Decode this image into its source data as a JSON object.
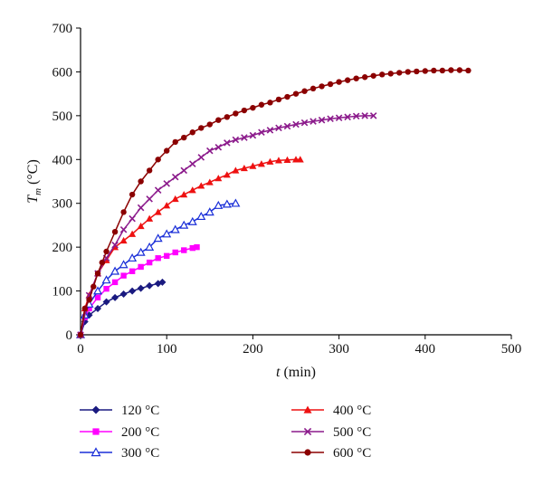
{
  "chart_data": {
    "type": "line",
    "title": "",
    "xlabel_var": "t",
    "xlabel_unit": " (min)",
    "ylabel_var": "T",
    "ylabel_sub": "m",
    "ylabel_unit": " (°C)",
    "xlim": [
      0,
      500
    ],
    "ylim": [
      0,
      700
    ],
    "xticks": [
      0,
      100,
      200,
      300,
      400,
      500
    ],
    "yticks": [
      0,
      100,
      200,
      300,
      400,
      500,
      600,
      700
    ],
    "grid": false,
    "legend_position": "bottom",
    "series": [
      {
        "name": "120 °C",
        "color": "#1a1a80",
        "marker": "diamond",
        "x": [
          0,
          5,
          10,
          20,
          30,
          40,
          50,
          60,
          70,
          80,
          90,
          95
        ],
        "y": [
          0,
          30,
          45,
          60,
          75,
          85,
          93,
          100,
          106,
          112,
          117,
          120
        ]
      },
      {
        "name": "200 °C",
        "color": "#ff00ff",
        "marker": "square",
        "x": [
          0,
          5,
          10,
          20,
          30,
          40,
          50,
          60,
          70,
          80,
          90,
          100,
          110,
          120,
          130,
          135
        ],
        "y": [
          0,
          40,
          60,
          85,
          105,
          120,
          135,
          145,
          155,
          165,
          175,
          180,
          188,
          193,
          198,
          200
        ]
      },
      {
        "name": "300 °C",
        "color": "#1a2fd8",
        "marker": "triangle-open",
        "x": [
          0,
          5,
          10,
          20,
          30,
          40,
          50,
          60,
          70,
          80,
          90,
          100,
          110,
          120,
          130,
          140,
          150,
          160,
          170,
          180
        ],
        "y": [
          0,
          45,
          70,
          100,
          125,
          145,
          160,
          175,
          188,
          200,
          220,
          230,
          240,
          250,
          258,
          270,
          280,
          295,
          298,
          300
        ]
      },
      {
        "name": "400 °C",
        "color": "#ee1111",
        "marker": "triangle",
        "x": [
          0,
          5,
          10,
          20,
          30,
          40,
          50,
          60,
          70,
          80,
          90,
          100,
          110,
          120,
          130,
          140,
          150,
          160,
          170,
          180,
          190,
          200,
          210,
          220,
          230,
          240,
          250,
          255
        ],
        "y": [
          0,
          60,
          90,
          140,
          170,
          200,
          215,
          230,
          248,
          265,
          280,
          295,
          310,
          320,
          330,
          340,
          348,
          357,
          365,
          375,
          380,
          385,
          390,
          395,
          398,
          399,
          400,
          400
        ]
      },
      {
        "name": "500 °C",
        "color": "#8b1a8b",
        "marker": "cross",
        "x": [
          0,
          10,
          20,
          30,
          40,
          50,
          60,
          70,
          80,
          90,
          100,
          110,
          120,
          130,
          140,
          150,
          160,
          170,
          180,
          190,
          200,
          210,
          220,
          230,
          240,
          250,
          260,
          270,
          280,
          290,
          300,
          310,
          320,
          330,
          340
        ],
        "y": [
          0,
          90,
          140,
          175,
          205,
          240,
          265,
          290,
          310,
          330,
          345,
          360,
          375,
          390,
          405,
          420,
          428,
          438,
          445,
          450,
          455,
          462,
          467,
          472,
          476,
          480,
          484,
          487,
          490,
          493,
          495,
          497,
          499,
          500,
          500
        ]
      },
      {
        "name": "600 °C",
        "color": "#8b0000",
        "marker": "circle",
        "x": [
          0,
          5,
          10,
          15,
          20,
          25,
          30,
          40,
          50,
          60,
          70,
          80,
          90,
          100,
          110,
          120,
          130,
          140,
          150,
          160,
          170,
          180,
          190,
          200,
          210,
          220,
          230,
          240,
          250,
          260,
          270,
          280,
          290,
          300,
          310,
          320,
          330,
          340,
          350,
          360,
          370,
          380,
          390,
          400,
          410,
          420,
          430,
          440,
          450
        ],
        "y": [
          0,
          60,
          80,
          110,
          140,
          165,
          190,
          235,
          280,
          320,
          350,
          375,
          400,
          420,
          440,
          450,
          462,
          472,
          480,
          490,
          497,
          505,
          512,
          518,
          525,
          530,
          537,
          543,
          550,
          556,
          562,
          567,
          572,
          577,
          581,
          585,
          588,
          591,
          594,
          596,
          598,
          600,
          601,
          602,
          603,
          603,
          604,
          604,
          603
        ]
      }
    ]
  }
}
